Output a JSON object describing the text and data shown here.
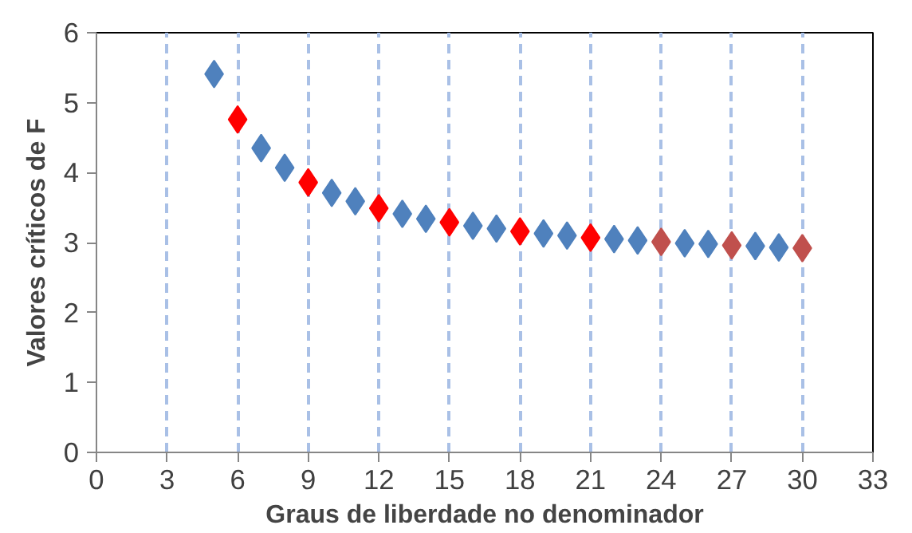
{
  "chart_data": {
    "type": "scatter",
    "xlabel": "Graus de liberdade no denominador",
    "ylabel": "Valores críticos de F",
    "marker": "diamond",
    "grid": "x",
    "xlim": [
      0,
      33
    ],
    "xticks": [
      0,
      3,
      6,
      9,
      12,
      15,
      18,
      21,
      24,
      27,
      30,
      33
    ],
    "ylim": [
      0,
      6
    ],
    "yticks": [
      0,
      1,
      2,
      3,
      4,
      5,
      6
    ],
    "series": [
      {
        "color": "#4f81bd",
        "x": [
          5,
          7,
          8,
          10,
          11,
          13,
          14,
          16,
          17,
          19,
          20,
          22,
          23,
          25,
          26,
          28,
          29
        ],
        "values": [
          5.41,
          4.35,
          4.07,
          3.71,
          3.59,
          3.41,
          3.34,
          3.24,
          3.2,
          3.13,
          3.1,
          3.05,
          3.03,
          2.99,
          2.98,
          2.95,
          2.93
        ]
      },
      {
        "color": "#ff0000",
        "x": [
          6,
          9,
          12,
          15,
          18,
          21
        ],
        "values": [
          4.76,
          3.86,
          3.49,
          3.29,
          3.16,
          3.07
        ]
      },
      {
        "color": "#c0504d",
        "x": [
          24,
          27,
          30
        ],
        "values": [
          3.01,
          2.96,
          2.92
        ]
      }
    ]
  }
}
